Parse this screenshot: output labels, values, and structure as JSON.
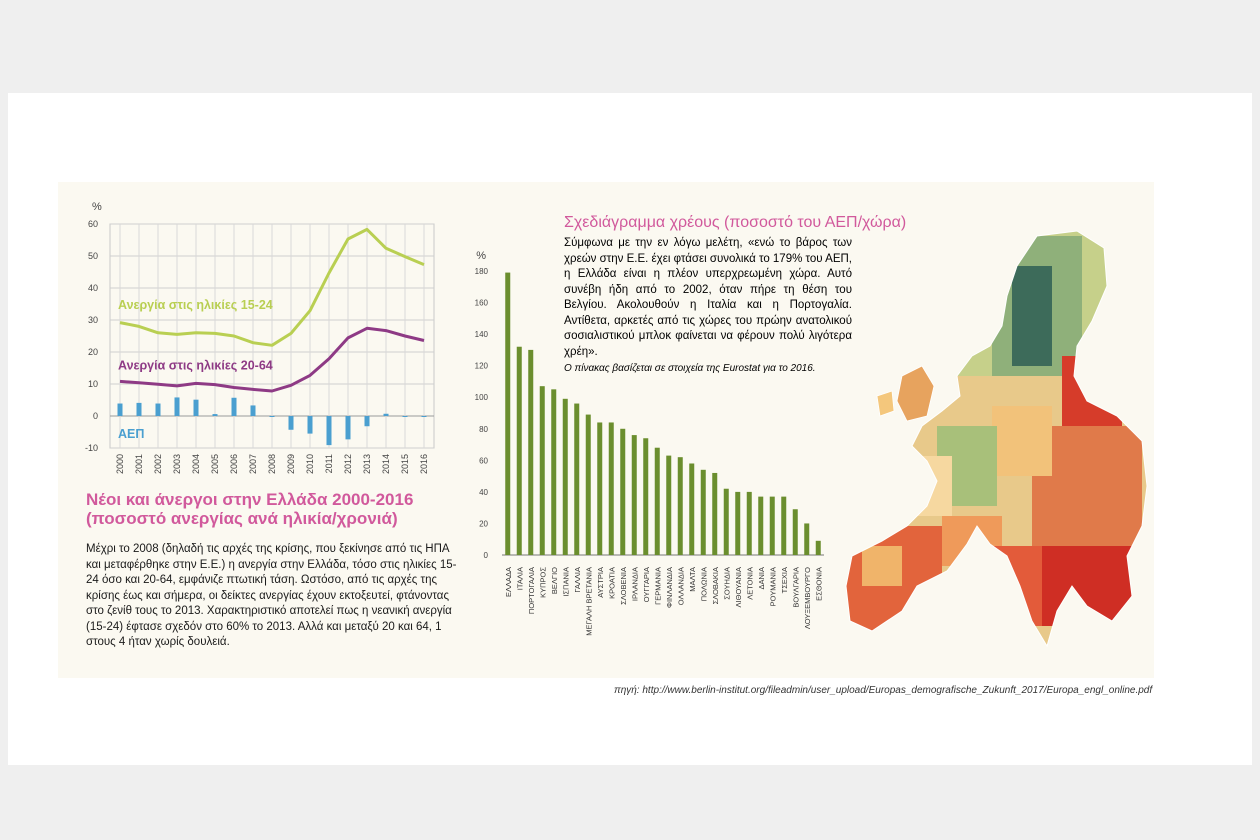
{
  "colors": {
    "accent_pink": "#d1599c",
    "youth_line": "#b9cf52",
    "adult_line": "#8e3a85",
    "gdp_bars": "#4a9fd0",
    "debt_bars": "#6b8e2e"
  },
  "unemployment": {
    "title": "Νέοι και άνεργοι στην Ελλάδα 2000-2016 (ποσοστό ανεργίας ανά ηλικία/χρονιά)",
    "text": "Μέχρι το 2008 (δηλαδή τις αρχές της κρίσης, που ξεκίνησε από τις ΗΠΑ και μεταφέρθηκε στην Ε.Ε.) η ανεργία στην Ελλάδα, τόσο στις ηλικίες 15-24 όσο και 20-64, εμφάνιζε πτωτική τάση. Ωστόσο, από τις αρχές της κρίσης έως και σήμερα, οι δείκτες ανεργίας έχουν εκτοξευτεί, φτάνοντας στο ζενίθ τους το 2013. Χαρακτηριστικό αποτελεί πως η νεανική ανεργία (15-24) έφτασε σχεδόν στο 60% το 2013. Αλλά και μεταξύ 20 και 64, 1 στους 4 ήταν χωρίς δουλειά."
  },
  "debt": {
    "title": "Σχεδιάγραμμα χρέους (ποσοστό του ΑΕΠ/χώρα)",
    "text": "Σύμφωνα με την εν λόγω μελέτη, «ενώ το βάρος των χρεών στην Ε.Ε. έχει φτάσει συνολικά το 179% του ΑΕΠ, η Ελλάδα είναι η πλέον υπερχρεωμένη χώρα. Αυτό συνέβη ήδη από το 2002, όταν πήρε τη θέση του Βελγίου. Ακολουθούν η Ιταλία και η Πορτογαλία. Αντίθετα, αρκετές από τις χώρες του πρώην ανατολικού σοσιαλιστικού μπλοκ φαίνεται να φέρουν πολύ λιγότερα χρέη».",
    "note": "Ο πίνακας βασίζεται σε στοιχεία της Eurostat για το 2016."
  },
  "source": "πηγή: http://www.berlin-institut.org/fileadmin/user_upload/Europas_demografische_Zukunft_2017/Europa_engl_online.pdf",
  "chart_data": [
    {
      "type": "line",
      "ylabel": "%",
      "ylim": [
        -10,
        60
      ],
      "yticks": [
        -10,
        0,
        10,
        20,
        30,
        40,
        50,
        60
      ],
      "grid": true,
      "x": [
        "2000",
        "2001",
        "2002",
        "2003",
        "2004",
        "2005",
        "2006",
        "2007",
        "2008",
        "2009",
        "2010",
        "2011",
        "2012",
        "2013",
        "2014",
        "2015",
        "2016"
      ],
      "series": [
        {
          "name": "Ανεργία στις ηλικίες 15-24",
          "type": "line",
          "values": [
            29.2,
            28.0,
            26.0,
            25.5,
            26.0,
            25.8,
            25.0,
            22.9,
            22.1,
            25.8,
            32.9,
            44.7,
            55.3,
            58.3,
            52.4,
            49.8,
            47.3
          ]
        },
        {
          "name": "Ανεργία στις ηλικίες 20-64",
          "type": "line",
          "values": [
            10.8,
            10.4,
            9.9,
            9.4,
            10.2,
            9.8,
            8.9,
            8.3,
            7.8,
            9.6,
            12.7,
            17.9,
            24.4,
            27.4,
            26.7,
            25.0,
            23.6
          ]
        },
        {
          "name": "ΑΕΠ",
          "type": "bar",
          "values": [
            3.9,
            4.1,
            3.9,
            5.8,
            5.1,
            0.6,
            5.7,
            3.3,
            -0.3,
            -4.3,
            -5.5,
            -9.1,
            -7.3,
            -3.2,
            0.7,
            -0.3,
            0.0
          ]
        }
      ]
    },
    {
      "type": "bar",
      "ylabel": "%",
      "ylim": [
        0,
        180
      ],
      "yticks": [
        0,
        20,
        40,
        60,
        80,
        100,
        120,
        140,
        160,
        180
      ],
      "categories": [
        "ΕΛΛΑΔΑ",
        "ΙΤΑΛΙΑ",
        "ΠΟΡΤΟΓΑΛΙΑ",
        "ΚΥΠΡΟΣ",
        "ΒΕΛΓΙΟ",
        "ΙΣΠΑΝΙΑ",
        "ΓΑΛΛΙΑ",
        "ΜΕΓΑΛΗ ΒΡΕΤΑΝΙΑ",
        "ΑΥΣΤΡΙΑ",
        "ΚΡΟΑΤΙΑ",
        "ΣΛΟΒΕΝΙΑ",
        "ΙΡΛΑΝΔΙΑ",
        "ΟΥΓΓΑΡΙΑ",
        "ΓΕΡΜΑΝΙΑ",
        "ΦΙΝΛΑΝΔΙΑ",
        "ΟΛΛΑΝΔΙΑ",
        "ΜΑΛΤΑ",
        "ΠΟΛΩΝΙΑ",
        "ΣΛΟΒΑΚΙΑ",
        "ΣΟΥΗΔΙΑ",
        "ΛΙΘΟΥΑΝΙΑ",
        "ΛΕΤΟΝΙΑ",
        "ΔΑΝΙΑ",
        "ΡΟΥΜΑΝΙΑ",
        "ΤΣΕΧΙΑ",
        "ΒΟΥΛΓΑΡΙΑ",
        "ΛΟΥΞΕΜΒΟΥΡΓΟ",
        "ΕΣΘΟΝΙΑ"
      ],
      "values": [
        179,
        132,
        130,
        107,
        105,
        99,
        96,
        89,
        84,
        84,
        80,
        76,
        74,
        68,
        63,
        62,
        58,
        54,
        52,
        42,
        40,
        40,
        37,
        37,
        37,
        29,
        20,
        9
      ]
    }
  ]
}
